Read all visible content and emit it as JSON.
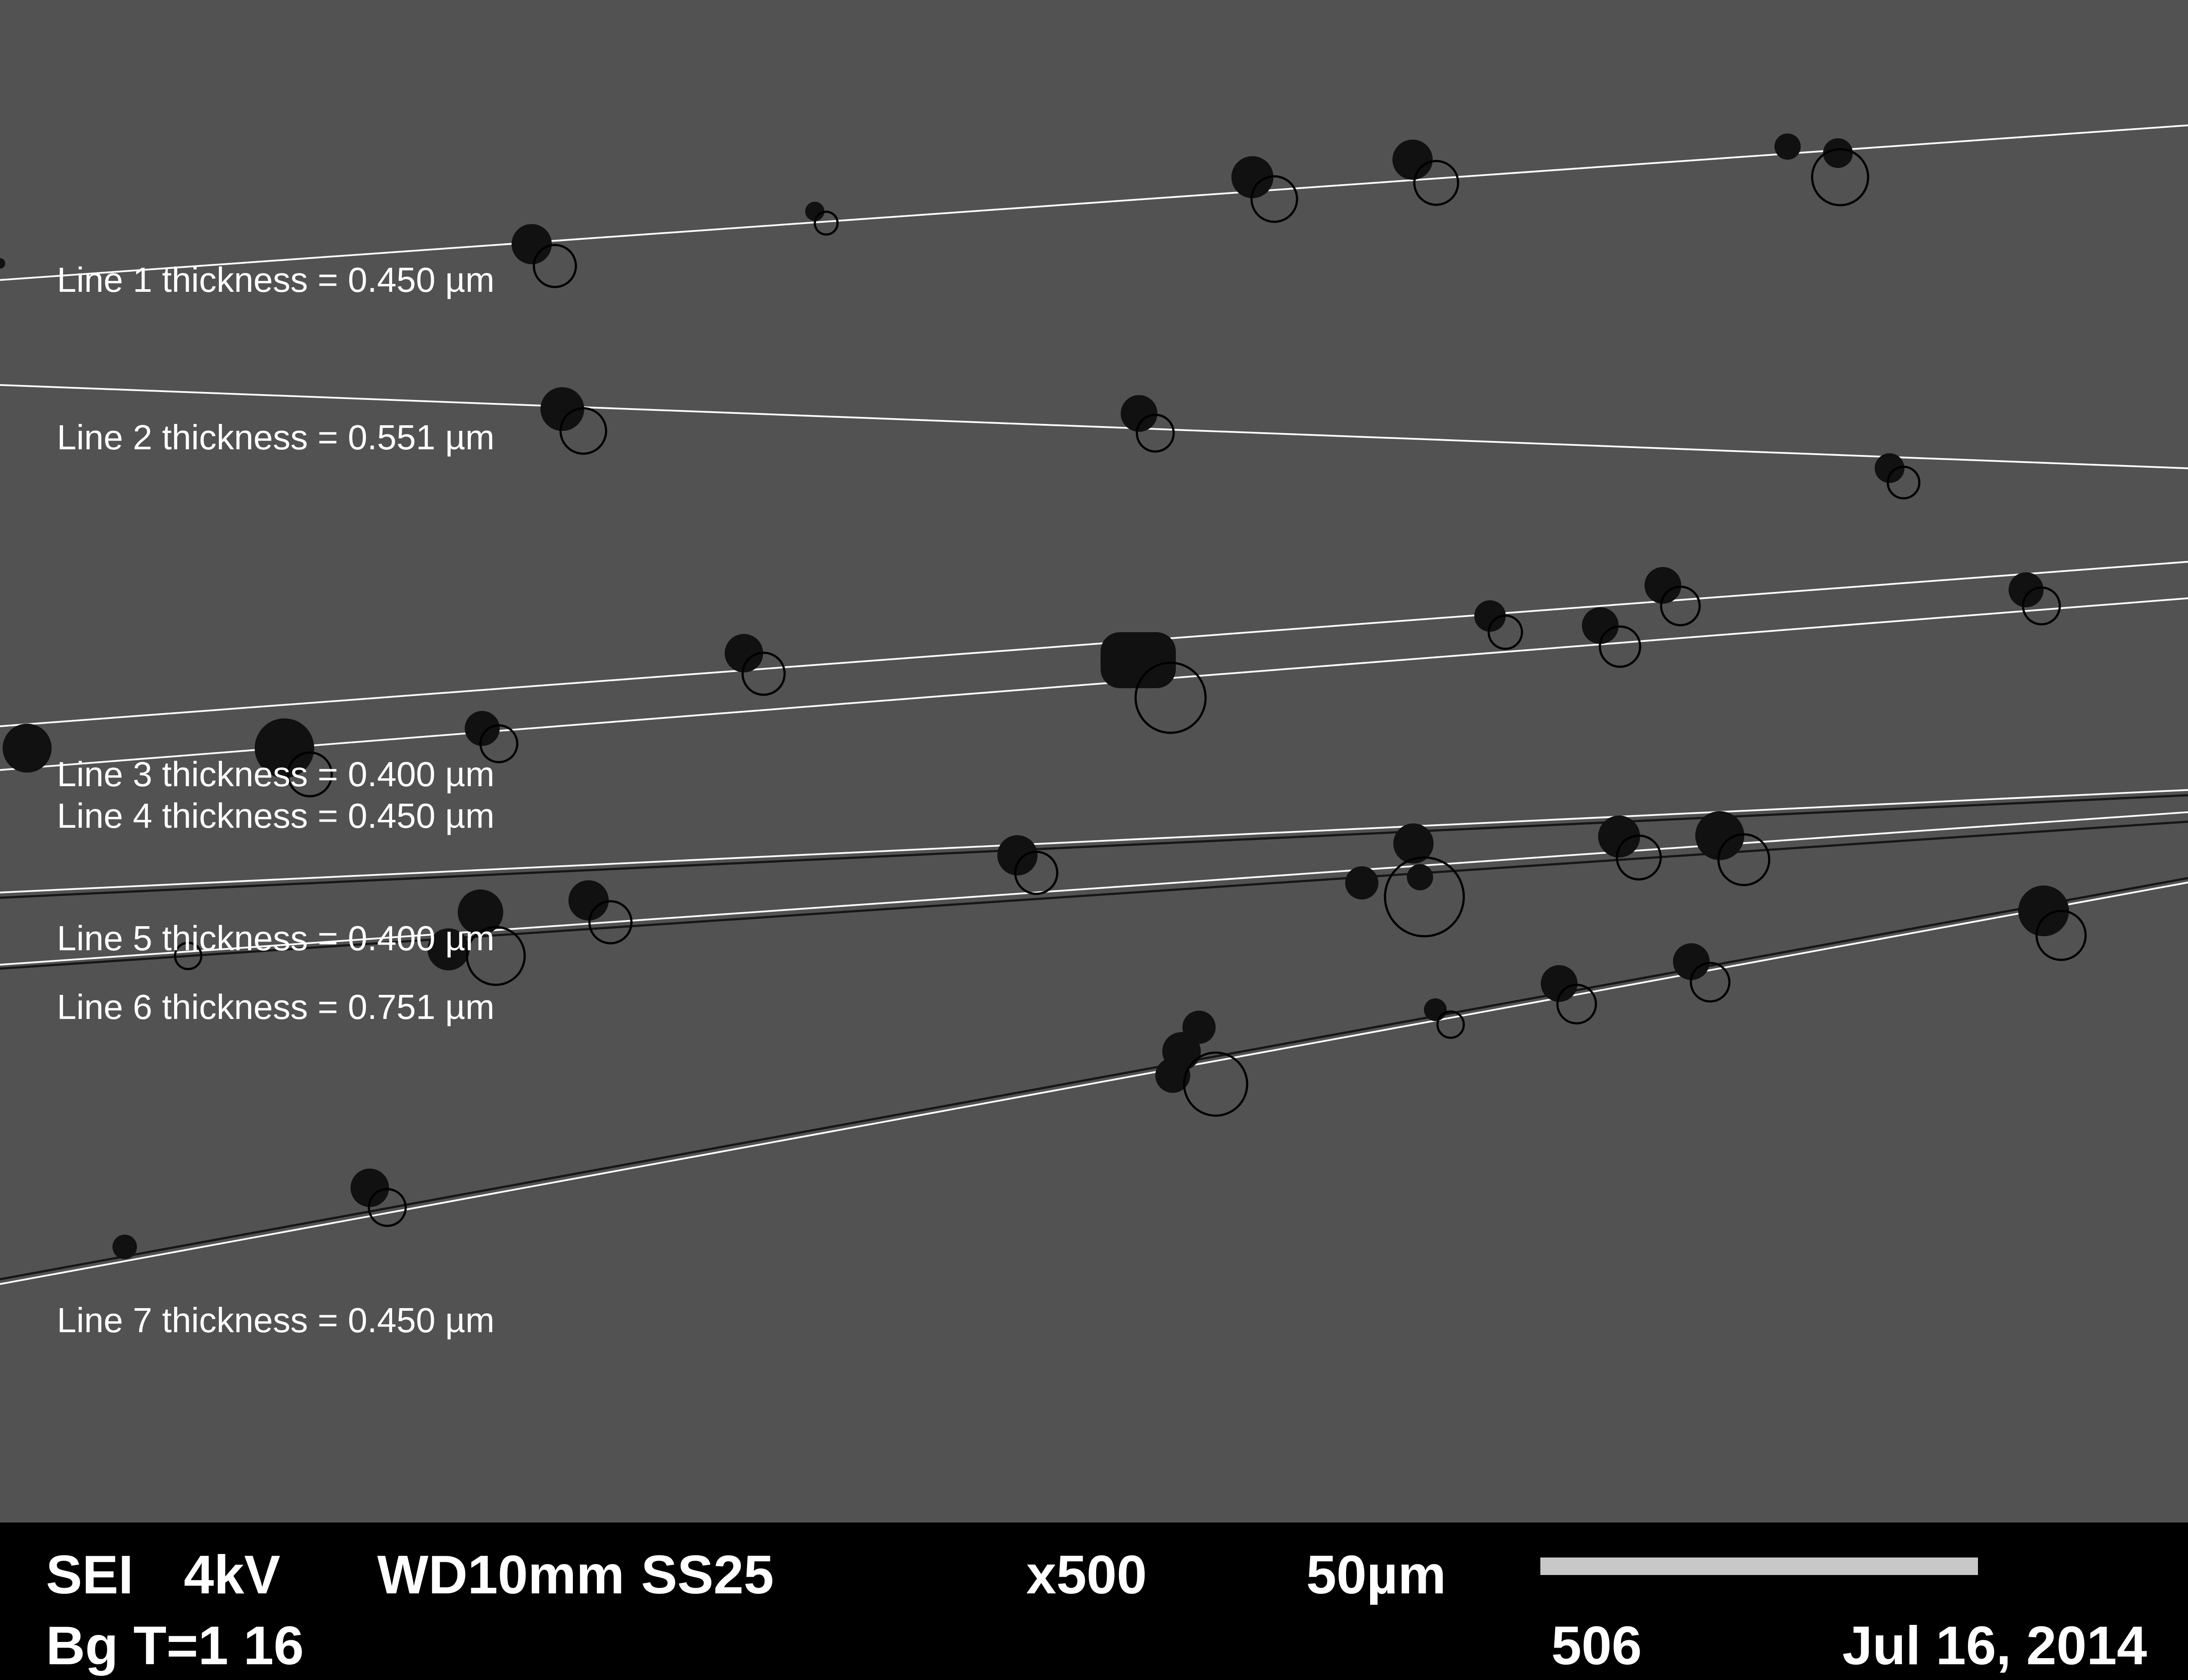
{
  "measurement_labels": [
    "Line 1 thickness = 0.450 µm",
    "Line 2 thickness = 0.551 µm",
    "Line 3 thickness = 0.400 µm",
    "Line 4 thickness = 0.450 µm",
    "Line 5 thickness = 0.400 µm",
    "Line 6 thickness = 0.751 µm",
    "Line 7 thickness = 0.450 µm"
  ],
  "info_bar": {
    "mode": "SEI",
    "voltage": "4kV",
    "working_distance": "WD10mm",
    "spot_size": "SS25",
    "magnification": "x500",
    "scale_label": "50µm",
    "background": "Bg T=1 16",
    "image_number": "506",
    "date": "Jul 16, 2014"
  },
  "colors": {
    "background": "#525252",
    "fiber": "#ffffff",
    "particle": "#111111",
    "info_bar": "#000000",
    "scale_bar": "#c8c8c8"
  }
}
